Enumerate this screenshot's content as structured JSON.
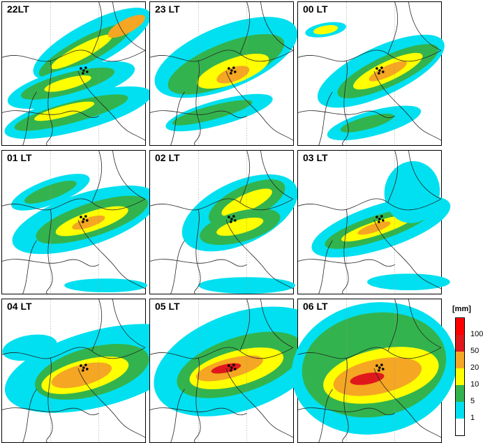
{
  "panels": [
    {
      "label": "22LT",
      "row": 0,
      "col": 0
    },
    {
      "label": "23 LT",
      "row": 0,
      "col": 1
    },
    {
      "label": "00 LT",
      "row": 0,
      "col": 2
    },
    {
      "label": "01 LT",
      "row": 1,
      "col": 0
    },
    {
      "label": "02 LT",
      "row": 1,
      "col": 1
    },
    {
      "label": "03 LT",
      "row": 1,
      "col": 2
    },
    {
      "label": "04 LT",
      "row": 2,
      "col": 0
    },
    {
      "label": "05 LT",
      "row": 2,
      "col": 1
    },
    {
      "label": "06 LT",
      "row": 2,
      "col": 2
    }
  ],
  "legend": {
    "unit": "[mm]",
    "levels": [
      "1",
      "5",
      "10",
      "20",
      "50",
      "100"
    ],
    "colors": [
      "#ffffff",
      "#00e0f0",
      "#33b34d",
      "#ffff00",
      "#f5a623",
      "#e0181c",
      "#ff0000"
    ]
  },
  "palette": {
    "light": "#00e0f0",
    "green": "#33b34d",
    "yellow": "#ffff00",
    "orange": "#f5a623",
    "red": "#e0181c",
    "border": "#222222",
    "grid": "#999999"
  }
}
